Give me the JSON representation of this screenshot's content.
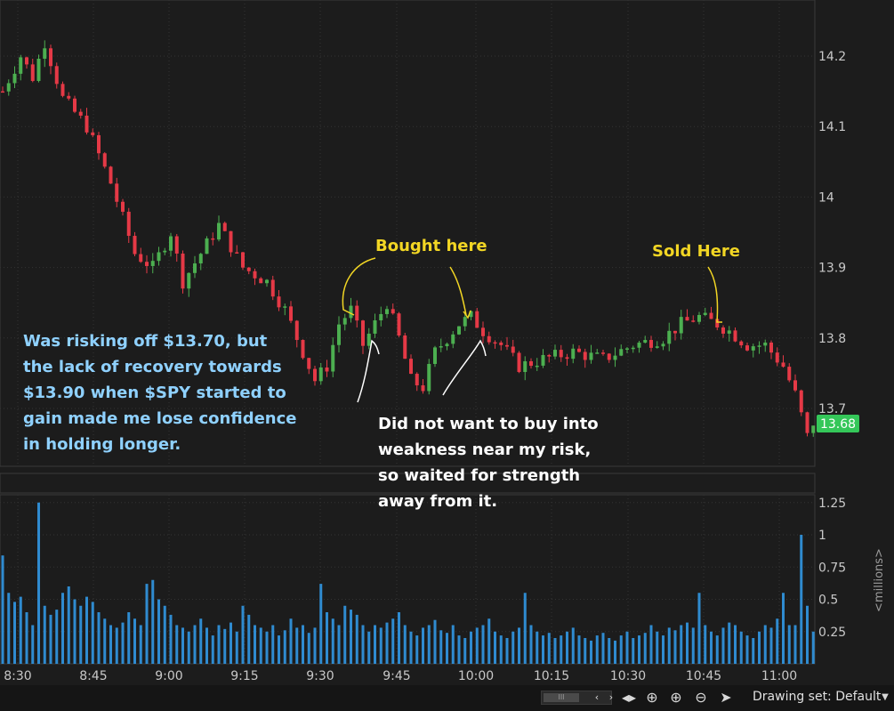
{
  "chart_data": {
    "type": "candlestick",
    "price_axis": {
      "ticks": [
        13.7,
        13.8,
        13.9,
        14,
        14.1,
        14.2
      ],
      "tick_labels": [
        "13.7",
        "13.8",
        "13.9",
        "14",
        "14.1",
        "14.2"
      ]
    },
    "current_price": "13.68",
    "volume_axis": {
      "ticks": [
        0.25,
        0.5,
        0.75,
        1,
        1.25
      ],
      "tick_labels": [
        "0.25",
        "0.5",
        "0.75",
        "1",
        "1.25"
      ],
      "unit_label": "<millions>"
    },
    "time_labels": [
      "8:30",
      "8:45",
      "9:00",
      "9:15",
      "9:30",
      "9:45",
      "10:00",
      "10:15",
      "10:30",
      "10:45",
      "11:00"
    ],
    "price_path": [
      [
        0,
        14.15
      ],
      [
        3,
        14.2
      ],
      [
        5,
        14.17
      ],
      [
        7,
        14.22
      ],
      [
        10,
        14.14
      ],
      [
        14,
        14.1
      ],
      [
        18,
        14.02
      ],
      [
        22,
        13.92
      ],
      [
        25,
        13.9
      ],
      [
        28,
        13.95
      ],
      [
        30,
        13.88
      ],
      [
        33,
        13.92
      ],
      [
        36,
        13.96
      ],
      [
        40,
        13.9
      ],
      [
        44,
        13.88
      ],
      [
        47,
        13.84
      ],
      [
        50,
        13.78
      ],
      [
        52,
        13.74
      ],
      [
        54,
        13.76
      ],
      [
        56,
        13.82
      ],
      [
        58,
        13.84
      ],
      [
        60,
        13.79
      ],
      [
        62,
        13.82
      ],
      [
        64,
        13.85
      ],
      [
        66,
        13.8
      ],
      [
        68,
        13.74
      ],
      [
        70,
        13.73
      ],
      [
        72,
        13.78
      ],
      [
        74,
        13.8
      ],
      [
        76,
        13.82
      ],
      [
        78,
        13.83
      ],
      [
        80,
        13.81
      ],
      [
        83,
        13.79
      ],
      [
        86,
        13.76
      ],
      [
        90,
        13.77
      ],
      [
        95,
        13.78
      ],
      [
        100,
        13.77
      ],
      [
        105,
        13.79
      ],
      [
        110,
        13.8
      ],
      [
        113,
        13.82
      ],
      [
        116,
        13.83
      ],
      [
        119,
        13.82
      ],
      [
        121,
        13.81
      ],
      [
        124,
        13.79
      ],
      [
        127,
        13.79
      ],
      [
        130,
        13.76
      ],
      [
        132,
        13.72
      ],
      [
        134,
        13.66
      ],
      [
        135,
        13.68
      ]
    ],
    "volume": [
      0.84,
      0.55,
      0.48,
      0.52,
      0.4,
      0.3,
      1.25,
      0.45,
      0.38,
      0.42,
      0.55,
      0.6,
      0.5,
      0.45,
      0.52,
      0.48,
      0.4,
      0.35,
      0.3,
      0.28,
      0.32,
      0.4,
      0.35,
      0.3,
      0.62,
      0.65,
      0.5,
      0.45,
      0.38,
      0.3,
      0.28,
      0.25,
      0.3,
      0.35,
      0.28,
      0.22,
      0.3,
      0.27,
      0.32,
      0.25,
      0.45,
      0.38,
      0.3,
      0.28,
      0.25,
      0.3,
      0.22,
      0.26,
      0.35,
      0.28,
      0.3,
      0.24,
      0.28,
      0.62,
      0.4,
      0.35,
      0.3,
      0.45,
      0.42,
      0.38,
      0.3,
      0.25,
      0.3,
      0.28,
      0.32,
      0.35,
      0.4,
      0.3,
      0.25,
      0.22,
      0.28,
      0.3,
      0.34,
      0.26,
      0.24,
      0.3,
      0.22,
      0.2,
      0.25,
      0.28,
      0.3,
      0.35,
      0.25,
      0.22,
      0.2,
      0.25,
      0.28,
      0.55,
      0.3,
      0.25,
      0.22,
      0.24,
      0.2,
      0.22,
      0.25,
      0.28,
      0.22,
      0.2,
      0.18,
      0.22,
      0.24,
      0.2,
      0.18,
      0.22,
      0.25,
      0.2,
      0.22,
      0.24,
      0.3,
      0.25,
      0.22,
      0.28,
      0.26,
      0.3,
      0.32,
      0.28,
      0.55,
      0.3,
      0.25,
      0.22,
      0.28,
      0.32,
      0.3,
      0.25,
      0.22,
      0.2,
      0.25,
      0.3,
      0.28,
      0.35,
      0.55,
      0.3,
      0.3,
      1.0,
      0.45,
      0.25
    ]
  },
  "annotations": {
    "bought_here": "Bought here",
    "sold_here": "Sold Here",
    "risk_note": [
      "Was risking off $13.70, but",
      "the lack of recovery towards",
      "$13.90 when $SPY started to",
      "gain made me lose confidence",
      "in holding longer."
    ],
    "wait_note": [
      "Did not want to buy into",
      "weakness near my risk,",
      "so waited for strength",
      "away from  it."
    ]
  },
  "toolbar": {
    "scroll_thumb": "III",
    "drawing_set": "Drawing set: Default",
    "icons": [
      "scroll-left-icon",
      "scroll-right-icon",
      "expand-horizontal-icon",
      "crosshair-icon",
      "zoom-in-icon",
      "zoom-out-icon",
      "pointer-icon",
      "chevron-down-icon"
    ]
  },
  "colors": {
    "up": "#4caf50",
    "down": "#e53946",
    "volume": "#2f8bd0",
    "price_badge": "#34c759"
  }
}
